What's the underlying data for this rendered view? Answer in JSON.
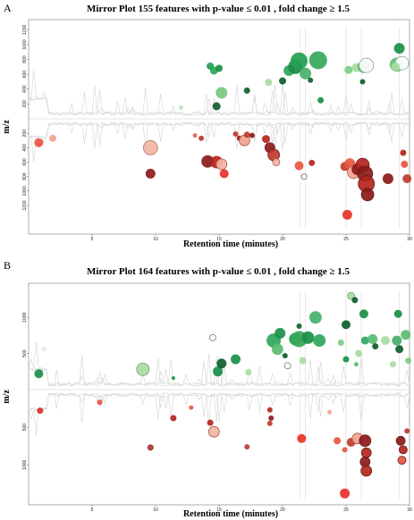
{
  "chart_data": [
    {
      "panel": "A",
      "type": "scatter",
      "title": "Mirror Plot 155 features with p-value ≤ 0.01 , fold change ≥  1.5",
      "xlabel": "Retention time (minutes)",
      "ylabel": "m/z",
      "xlim": [
        0,
        30
      ],
      "ylim": [
        -1300,
        1300
      ],
      "xticks": [
        5,
        10,
        15,
        20,
        25,
        30
      ],
      "yticks_up": [
        200,
        400,
        600,
        800,
        1000,
        1200
      ],
      "yticks_down": [
        -200,
        -400,
        -600,
        -800,
        -1000,
        -1200
      ],
      "ytick_labels_up": [
        "200",
        "400",
        "600",
        "800",
        "1000",
        "1200"
      ],
      "ytick_labels_down": [
        "200",
        "400",
        "600",
        "800",
        "1000",
        "1200"
      ],
      "grid": false,
      "legend": "none",
      "colors": {
        "up": "#2e9e4f",
        "down": "#c0392b"
      },
      "points": [
        {
          "x": 12.0,
          "y": 150,
          "s": 2.5,
          "c": "#bfe4b8"
        },
        {
          "x": 14.3,
          "y": 710,
          "s": 4,
          "c": "#1e9e50"
        },
        {
          "x": 14.6,
          "y": 650,
          "s": 4.5,
          "c": "#29a65a"
        },
        {
          "x": 15.0,
          "y": 680,
          "s": 4,
          "c": "#1a8f48"
        },
        {
          "x": 15.2,
          "y": 350,
          "s": 6.5,
          "c": "#78c77e"
        },
        {
          "x": 14.8,
          "y": 170,
          "s": 4.5,
          "c": "#0d5e2a"
        },
        {
          "x": 17.2,
          "y": 380,
          "s": 3.5,
          "c": "#0d5e2a"
        },
        {
          "x": 18.9,
          "y": 490,
          "s": 4,
          "c": "#a6dc9f"
        },
        {
          "x": 20.0,
          "y": 510,
          "s": 4,
          "c": "#0d5e2a"
        },
        {
          "x": 20.5,
          "y": 650,
          "s": 6,
          "c": "#2fa65b"
        },
        {
          "x": 21.0,
          "y": 700,
          "s": 8,
          "c": "#1b8b45"
        },
        {
          "x": 21.3,
          "y": 780,
          "s": 9.5,
          "c": "#22a052"
        },
        {
          "x": 21.8,
          "y": 610,
          "s": 6.5,
          "c": "#46b06a"
        },
        {
          "x": 22.2,
          "y": 520,
          "s": 3,
          "c": "#0d5e2a"
        },
        {
          "x": 22.8,
          "y": 790,
          "s": 10,
          "c": "#35a85c"
        },
        {
          "x": 23.0,
          "y": 250,
          "s": 3.5,
          "c": "#1a8f48"
        },
        {
          "x": 25.2,
          "y": 660,
          "s": 4.5,
          "c": "#7fcc84"
        },
        {
          "x": 25.8,
          "y": 690,
          "s": 5,
          "c": "#a6dc9f"
        },
        {
          "x": 26.4,
          "y": 700,
          "s": 7,
          "c": "#5bbd72"
        },
        {
          "x": 26.6,
          "y": 720,
          "s": 8,
          "c": "#ffffff",
          "edge": "#8fa892"
        },
        {
          "x": 26.3,
          "y": 500,
          "s": 3,
          "c": "#0d5e2a"
        },
        {
          "x": 29.2,
          "y": 950,
          "s": 6,
          "c": "#1a8f48"
        },
        {
          "x": 29.0,
          "y": 730,
          "s": 8,
          "c": "#5bbd72"
        },
        {
          "x": 29.4,
          "y": 750,
          "s": 7.5,
          "c": "#ffffff",
          "edge": "#8fa892"
        },
        {
          "x": 28.9,
          "y": 700,
          "s": 5,
          "c": "#a6dc9f"
        },
        {
          "x": 0.8,
          "y": -330,
          "s": 5,
          "c": "#e8553f"
        },
        {
          "x": 1.9,
          "y": -270,
          "s": 4,
          "c": "#f3a393"
        },
        {
          "x": 9.6,
          "y": -760,
          "s": 5.5,
          "c": "#8b1a1a"
        },
        {
          "x": 9.6,
          "y": -400,
          "s": 8,
          "c": "#f3b5a6",
          "edge": "#b07a6e"
        },
        {
          "x": 13.1,
          "y": -230,
          "s": 2.5,
          "c": "#d9685a"
        },
        {
          "x": 13.6,
          "y": -270,
          "s": 3,
          "c": "#c0392b"
        },
        {
          "x": 14.1,
          "y": -590,
          "s": 7,
          "c": "#8b1a1a"
        },
        {
          "x": 14.8,
          "y": -600,
          "s": 7,
          "c": "#b3261e"
        },
        {
          "x": 15.2,
          "y": -630,
          "s": 6,
          "c": "#f3b5a6",
          "edge": "#a8584d"
        },
        {
          "x": 15.4,
          "y": -760,
          "s": 5,
          "c": "#e8312a"
        },
        {
          "x": 16.3,
          "y": -210,
          "s": 3,
          "c": "#c0392b"
        },
        {
          "x": 16.6,
          "y": -270,
          "s": 3,
          "c": "#8b1a1a"
        },
        {
          "x": 17.0,
          "y": -300,
          "s": 6,
          "c": "#f3a393",
          "edge": "#a8584d"
        },
        {
          "x": 17.2,
          "y": -220,
          "s": 3.5,
          "c": "#c0392b"
        },
        {
          "x": 17.6,
          "y": -230,
          "s": 3,
          "c": "#8b1a1a"
        },
        {
          "x": 18.7,
          "y": -280,
          "s": 4.5,
          "c": "#b3261e"
        },
        {
          "x": 19.0,
          "y": -400,
          "s": 6,
          "c": "#8b1a1a"
        },
        {
          "x": 19.3,
          "y": -500,
          "s": 6.5,
          "c": "#c0392b",
          "edge": "#6a1b16"
        },
        {
          "x": 19.5,
          "y": -600,
          "s": 4,
          "c": "#f3b5a6",
          "edge": "#a8584d"
        },
        {
          "x": 21.3,
          "y": -650,
          "s": 5,
          "c": "#e8553f"
        },
        {
          "x": 21.7,
          "y": -800,
          "s": 3,
          "c": "#ffffff",
          "edge": "#8b4a42"
        },
        {
          "x": 22.3,
          "y": -610,
          "s": 3.5,
          "c": "#b3261e"
        },
        {
          "x": 24.9,
          "y": -660,
          "s": 5,
          "c": "#c0392b"
        },
        {
          "x": 25.3,
          "y": -620,
          "s": 6,
          "c": "#e8553f"
        },
        {
          "x": 25.6,
          "y": -740,
          "s": 7,
          "c": "#f3a393",
          "edge": "#a8584d"
        },
        {
          "x": 25.9,
          "y": -700,
          "s": 6.5,
          "c": "#8b1a1a"
        },
        {
          "x": 26.3,
          "y": -640,
          "s": 7.5,
          "c": "#b3261e",
          "edge": "#6a1b16"
        },
        {
          "x": 26.5,
          "y": -760,
          "s": 8.5,
          "c": "#8b1a1a",
          "edge": "#6a1b16"
        },
        {
          "x": 26.6,
          "y": -900,
          "s": 9,
          "c": "#b3261e",
          "edge": "#6a1b16"
        },
        {
          "x": 26.7,
          "y": -1050,
          "s": 7,
          "c": "#8b1a1a",
          "edge": "#6a1b16"
        },
        {
          "x": 25.1,
          "y": -1330,
          "s": 5.5,
          "c": "#e8312a"
        },
        {
          "x": 28.3,
          "y": -830,
          "s": 6,
          "c": "#8b1a1a"
        },
        {
          "x": 29.5,
          "y": -470,
          "s": 3.5,
          "c": "#b3261e"
        },
        {
          "x": 29.6,
          "y": -630,
          "s": 4,
          "c": "#e8553f"
        },
        {
          "x": 29.8,
          "y": -830,
          "s": 5,
          "c": "#c0392b"
        }
      ]
    },
    {
      "panel": "B",
      "type": "scatter",
      "title": "Mirror Plot 164 features with p-value ≤ 0.01 , fold change ≥  1.5",
      "xlabel": "Retention time (minutes)",
      "ylabel": "m/z",
      "xlim": [
        0,
        30
      ],
      "ylim": [
        -1400,
        1400
      ],
      "xticks": [
        5,
        10,
        15,
        20,
        25,
        30
      ],
      "yticks_up": [
        500,
        1000
      ],
      "yticks_down": [
        -500,
        -1000
      ],
      "ytick_labels_up": [
        "500",
        "1000"
      ],
      "ytick_labels_down": [
        "500",
        "1000"
      ],
      "grid": false,
      "legend": "none",
      "colors": {
        "up": "#2e9e4f",
        "down": "#c0392b"
      },
      "points": [
        {
          "x": 1.2,
          "y": 560,
          "s": 3,
          "c": "#e8efe6"
        },
        {
          "x": 0.8,
          "y": 220,
          "s": 5,
          "c": "#1a8f48"
        },
        {
          "x": 9.0,
          "y": 280,
          "s": 7,
          "c": "#a6dc9f",
          "edge": "#7c9a79"
        },
        {
          "x": 11.4,
          "y": 160,
          "s": 2,
          "c": "#1a8f48"
        },
        {
          "x": 14.5,
          "y": 720,
          "s": 3.5,
          "c": "#ffffff",
          "edge": "#6f7f70"
        },
        {
          "x": 14.9,
          "y": 250,
          "s": 5.5,
          "c": "#1a8f48"
        },
        {
          "x": 15.2,
          "y": 360,
          "s": 5.5,
          "c": "#0d5e2a"
        },
        {
          "x": 16.3,
          "y": 420,
          "s": 5.5,
          "c": "#1a8f48"
        },
        {
          "x": 17.3,
          "y": 240,
          "s": 3.5,
          "c": "#a6dc9f"
        },
        {
          "x": 19.3,
          "y": 680,
          "s": 8,
          "c": "#2fa65b"
        },
        {
          "x": 19.6,
          "y": 560,
          "s": 6.5,
          "c": "#5bbd72"
        },
        {
          "x": 19.8,
          "y": 780,
          "s": 6,
          "c": "#1a8f48"
        },
        {
          "x": 20.2,
          "y": 470,
          "s": 3,
          "c": "#0d5e2a"
        },
        {
          "x": 20.4,
          "y": 330,
          "s": 3.5,
          "c": "#ffffff",
          "edge": "#6f7f70"
        },
        {
          "x": 21.0,
          "y": 700,
          "s": 7,
          "c": "#22a052"
        },
        {
          "x": 21.3,
          "y": 700,
          "s": 9,
          "c": "#35a85c"
        },
        {
          "x": 21.6,
          "y": 400,
          "s": 4,
          "c": "#a6dc9f"
        },
        {
          "x": 22.0,
          "y": 720,
          "s": 7,
          "c": "#1a8f48"
        },
        {
          "x": 22.6,
          "y": 1000,
          "s": 7,
          "c": "#46b06a"
        },
        {
          "x": 22.9,
          "y": 680,
          "s": 7,
          "c": "#2fa65b"
        },
        {
          "x": 21.3,
          "y": 880,
          "s": 3,
          "c": "#0d5e2a"
        },
        {
          "x": 25.0,
          "y": 900,
          "s": 5,
          "c": "#0d5e2a"
        },
        {
          "x": 24.6,
          "y": 650,
          "s": 3.5,
          "c": "#7fcc84"
        },
        {
          "x": 25.0,
          "y": 420,
          "s": 3.5,
          "c": "#1a8f48"
        },
        {
          "x": 25.4,
          "y": 1300,
          "s": 4,
          "c": "#a6dc9f",
          "edge": "#7c9a79"
        },
        {
          "x": 25.7,
          "y": 1240,
          "s": 3.5,
          "c": "#0d5e2a"
        },
        {
          "x": 26.0,
          "y": 500,
          "s": 4,
          "c": "#a6dc9f"
        },
        {
          "x": 25.8,
          "y": 350,
          "s": 2.5,
          "c": "#5bbd72"
        },
        {
          "x": 26.4,
          "y": 1050,
          "s": 5,
          "c": "#1a8f48"
        },
        {
          "x": 26.5,
          "y": 680,
          "s": 4.5,
          "c": "#2fa65b"
        },
        {
          "x": 27.1,
          "y": 700,
          "s": 5.5,
          "c": "#5bbd72"
        },
        {
          "x": 27.3,
          "y": 600,
          "s": 3.5,
          "c": "#0d5e2a"
        },
        {
          "x": 28.1,
          "y": 680,
          "s": 5,
          "c": "#a6dc9f"
        },
        {
          "x": 29.1,
          "y": 1050,
          "s": 4.5,
          "c": "#1a8f48"
        },
        {
          "x": 29.0,
          "y": 680,
          "s": 5.5,
          "c": "#46b06a"
        },
        {
          "x": 29.2,
          "y": 560,
          "s": 4.5,
          "c": "#0d5e2a"
        },
        {
          "x": 28.7,
          "y": 350,
          "s": 3.5,
          "c": "#a6dc9f"
        },
        {
          "x": 29.7,
          "y": 760,
          "s": 5.5,
          "c": "#5bbd72"
        },
        {
          "x": 29.9,
          "y": 400,
          "s": 3.5,
          "c": "#7fcc84"
        },
        {
          "x": 0.9,
          "y": -280,
          "s": 3.5,
          "c": "#d9302a"
        },
        {
          "x": 5.6,
          "y": -170,
          "s": 3,
          "c": "#e8553f"
        },
        {
          "x": 9.6,
          "y": -770,
          "s": 3,
          "c": "#c0392b",
          "edge": "#6a1b16"
        },
        {
          "x": 11.4,
          "y": -380,
          "s": 3.5,
          "c": "#b3261e"
        },
        {
          "x": 12.8,
          "y": -240,
          "s": 2.5,
          "c": "#e8553f"
        },
        {
          "x": 14.6,
          "y": -560,
          "s": 6,
          "c": "#f3b5a6",
          "edge": "#a8584d"
        },
        {
          "x": 14.3,
          "y": -440,
          "s": 3.5,
          "c": "#b3261e"
        },
        {
          "x": 17.2,
          "y": -760,
          "s": 3,
          "c": "#c0392b"
        },
        {
          "x": 19.0,
          "y": -270,
          "s": 3,
          "c": "#b3261e"
        },
        {
          "x": 19.1,
          "y": -380,
          "s": 3,
          "c": "#8b1a1a"
        },
        {
          "x": 19.0,
          "y": -450,
          "s": 3,
          "c": "#c0392b"
        },
        {
          "x": 21.5,
          "y": -650,
          "s": 5,
          "c": "#e8312a"
        },
        {
          "x": 23.7,
          "y": -300,
          "s": 2.5,
          "c": "#f3a393"
        },
        {
          "x": 24.3,
          "y": -680,
          "s": 4,
          "c": "#e8553f"
        },
        {
          "x": 25.4,
          "y": -700,
          "s": 5,
          "c": "#c0392b"
        },
        {
          "x": 25.9,
          "y": -650,
          "s": 6,
          "c": "#f3a393",
          "edge": "#a8584d"
        },
        {
          "x": 26.5,
          "y": -680,
          "s": 6.5,
          "c": "#8b1a1a",
          "edge": "#6a1b16"
        },
        {
          "x": 26.6,
          "y": -840,
          "s": 5.5,
          "c": "#b3261e",
          "edge": "#6a1b16"
        },
        {
          "x": 26.5,
          "y": -960,
          "s": 5.5,
          "c": "#8b1a1a",
          "edge": "#6a1b16"
        },
        {
          "x": 26.6,
          "y": -1080,
          "s": 6,
          "c": "#b3261e",
          "edge": "#6a1b16"
        },
        {
          "x": 24.9,
          "y": -800,
          "s": 3,
          "c": "#e8553f"
        },
        {
          "x": 24.9,
          "y": -1380,
          "s": 5.5,
          "c": "#e8312a"
        },
        {
          "x": 29.3,
          "y": -680,
          "s": 5,
          "c": "#8b1a1a",
          "edge": "#6a1b16"
        },
        {
          "x": 29.5,
          "y": -800,
          "s": 4.5,
          "c": "#b3261e",
          "edge": "#6a1b16"
        },
        {
          "x": 29.4,
          "y": -940,
          "s": 4.5,
          "c": "#e8553f",
          "edge": "#6a1b16"
        },
        {
          "x": 29.8,
          "y": -550,
          "s": 3,
          "c": "#c0392b"
        }
      ]
    }
  ]
}
